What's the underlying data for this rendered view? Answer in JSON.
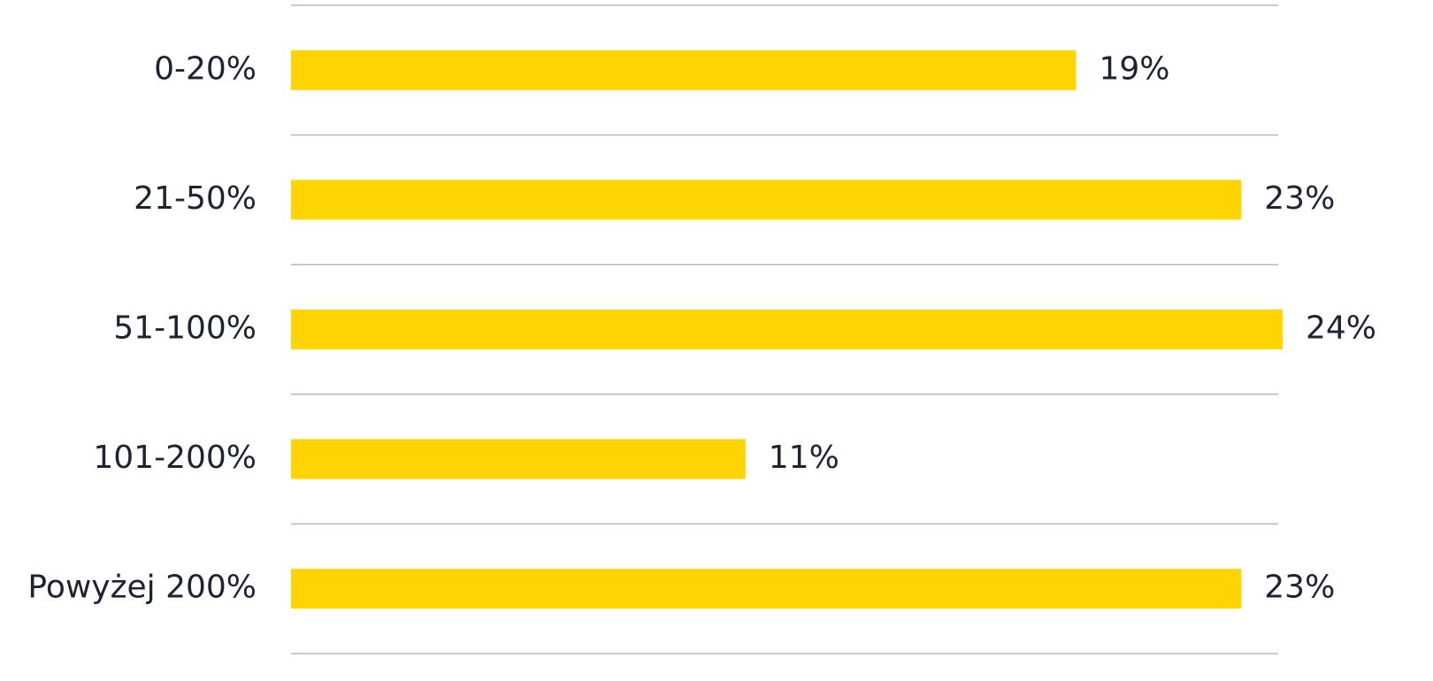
{
  "chart_data": {
    "type": "bar",
    "orientation": "horizontal",
    "categories": [
      "0-20%",
      "21-50%",
      "51-100%",
      "101-200%",
      "Powyżej 200%"
    ],
    "values": [
      19,
      23,
      24,
      11,
      23
    ],
    "value_labels": [
      "19%",
      "23%",
      "24%",
      "11%",
      "23%"
    ],
    "color": "#ffd400"
  }
}
